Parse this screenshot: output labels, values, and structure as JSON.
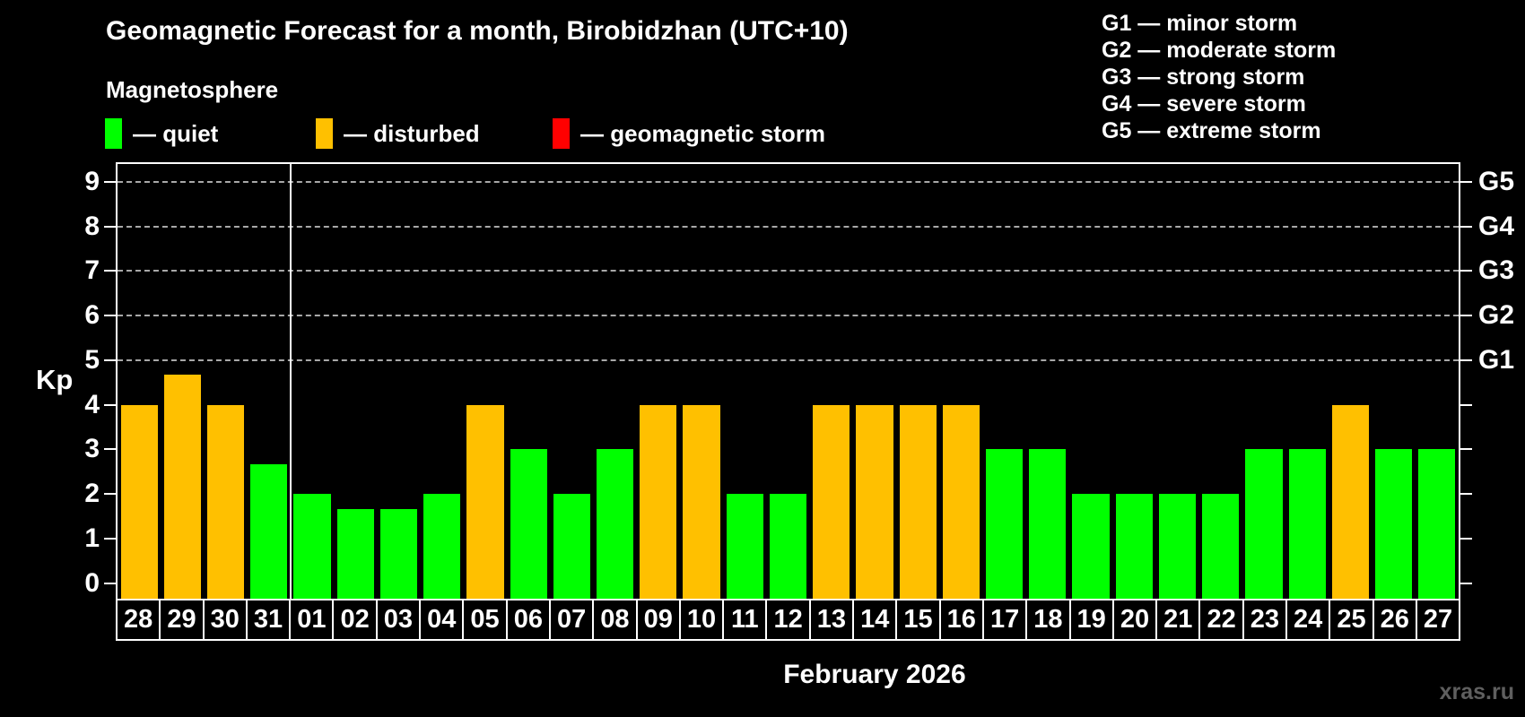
{
  "title": "Geomagnetic Forecast for a month, Birobidzhan (UTC+10)",
  "subtitle": "Magnetosphere",
  "watermark": "xras.ru",
  "kp_legend": {
    "dash": "—",
    "items": [
      {
        "label": "quiet",
        "status": "quiet",
        "color": "#00ff00"
      },
      {
        "label": "disturbed",
        "status": "disturbed",
        "color": "#ffc000"
      },
      {
        "label": "geomagnetic storm",
        "status": "storm",
        "color": "#ff0000"
      }
    ]
  },
  "storm_scale_legend": {
    "dash": "—",
    "items": [
      {
        "code": "G1",
        "label": "minor storm"
      },
      {
        "code": "G2",
        "label": "moderate storm"
      },
      {
        "code": "G3",
        "label": "strong storm"
      },
      {
        "code": "G4",
        "label": "severe storm"
      },
      {
        "code": "G5",
        "label": "extreme storm"
      }
    ]
  },
  "chart_data": {
    "type": "bar",
    "title": "Geomagnetic Forecast for a month, Birobidzhan (UTC+10)",
    "xlabel": "February 2026",
    "ylabel": "Kp",
    "ylim": [
      0,
      9
    ],
    "yticks": [
      0,
      1,
      2,
      3,
      4,
      5,
      6,
      7,
      8,
      9
    ],
    "gridlines_at": [
      5,
      6,
      7,
      8,
      9
    ],
    "grid": "dashed horizontal lines at G-storm levels only",
    "legend_position": "top",
    "right_axis_labels": [
      {
        "value": 5,
        "label": "G1"
      },
      {
        "value": 6,
        "label": "G2"
      },
      {
        "value": 7,
        "label": "G3"
      },
      {
        "value": 8,
        "label": "G4"
      },
      {
        "value": 9,
        "label": "G5"
      }
    ],
    "categories": [
      "28",
      "29",
      "30",
      "31",
      "01",
      "02",
      "03",
      "04",
      "05",
      "06",
      "07",
      "08",
      "09",
      "10",
      "11",
      "12",
      "13",
      "14",
      "15",
      "16",
      "17",
      "18",
      "19",
      "20",
      "21",
      "22",
      "23",
      "24",
      "25",
      "26",
      "27"
    ],
    "values": [
      4,
      4.67,
      4,
      2.67,
      2,
      1.67,
      1.67,
      2,
      4,
      3,
      2,
      3,
      4,
      4,
      2,
      2,
      4,
      4,
      4,
      4,
      3,
      3,
      2,
      2,
      2,
      2,
      3,
      3,
      4,
      3,
      3
    ],
    "statuses": [
      "disturbed",
      "disturbed",
      "disturbed",
      "quiet",
      "quiet",
      "quiet",
      "quiet",
      "quiet",
      "disturbed",
      "quiet",
      "quiet",
      "quiet",
      "disturbed",
      "disturbed",
      "quiet",
      "quiet",
      "disturbed",
      "disturbed",
      "disturbed",
      "disturbed",
      "quiet",
      "quiet",
      "quiet",
      "quiet",
      "quiet",
      "quiet",
      "quiet",
      "quiet",
      "disturbed",
      "quiet",
      "quiet"
    ],
    "status_colors": {
      "quiet": "#00ff00",
      "disturbed": "#ffc000",
      "storm": "#ff0000"
    },
    "separator_after_category": "31"
  }
}
